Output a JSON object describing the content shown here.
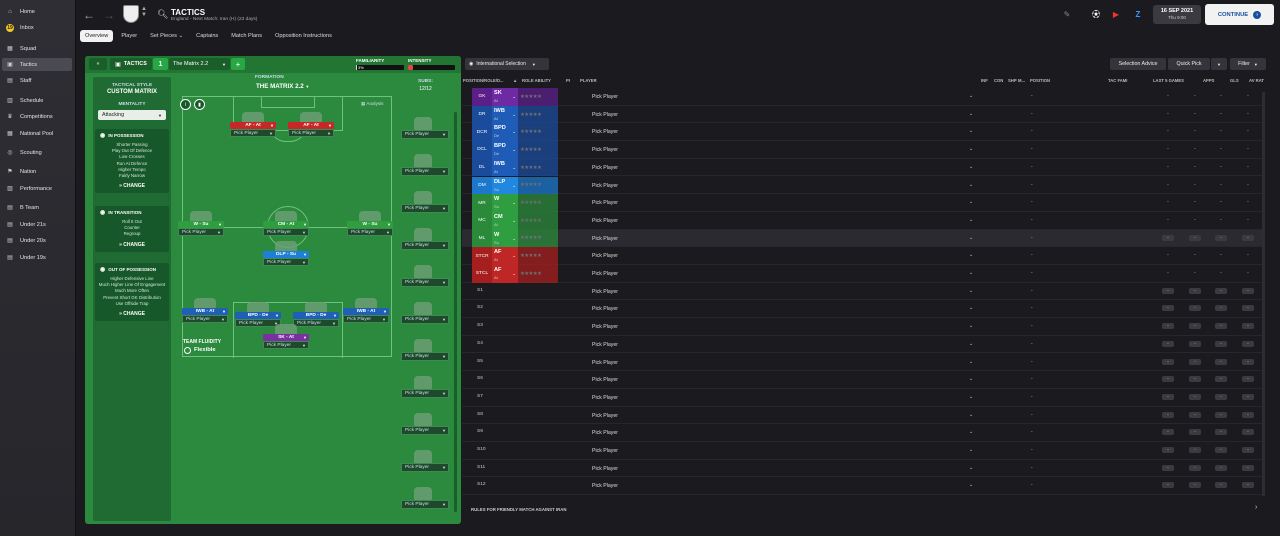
{
  "sidebar": {
    "items": [
      {
        "label": "Home",
        "icon": "home-icon",
        "glyph": "⌂"
      },
      {
        "label": "Inbox",
        "icon": "inbox-icon",
        "glyph": "19",
        "badge": true
      },
      {
        "label": "Squad",
        "icon": "squad-icon",
        "glyph": "▦"
      },
      {
        "label": "Tactics",
        "icon": "tactics-icon",
        "glyph": "▣",
        "active": true
      },
      {
        "label": "Staff",
        "icon": "staff-icon",
        "glyph": "▤"
      },
      {
        "label": "Schedule",
        "icon": "schedule-icon",
        "glyph": "▥"
      },
      {
        "label": "Competitions",
        "icon": "trophy-icon",
        "glyph": "♛"
      },
      {
        "label": "National Pool",
        "icon": "pool-icon",
        "glyph": "▦"
      },
      {
        "label": "Scouting",
        "icon": "scouting-icon",
        "glyph": "◎"
      },
      {
        "label": "Nation",
        "icon": "nation-icon",
        "glyph": "⚑"
      },
      {
        "label": "Performance",
        "icon": "performance-icon",
        "glyph": "▨"
      },
      {
        "label": "B Team",
        "icon": "team-icon",
        "glyph": "▤"
      },
      {
        "label": "Under 21s",
        "icon": "team-icon",
        "glyph": "▤"
      },
      {
        "label": "Under 20s",
        "icon": "team-icon",
        "glyph": "▤"
      },
      {
        "label": "Under 19s",
        "icon": "team-icon",
        "glyph": "▤"
      }
    ]
  },
  "header": {
    "title": "TACTICS",
    "subtitle": "England - Next Match: Iran (H) (23 days)",
    "date": "16 SEP 2021",
    "time": "Thu 9:00",
    "continue_label": "CONTINUE"
  },
  "tabs": [
    {
      "label": "Overview",
      "active": true
    },
    {
      "label": "Player"
    },
    {
      "label": "Set Pieces ⌄"
    },
    {
      "label": "Captains"
    },
    {
      "label": "Match Plans"
    },
    {
      "label": "Opposition Instructions"
    }
  ],
  "tactics": {
    "label": "TACTICS",
    "number": "1",
    "selected_tactic": "The Matrix 2.2",
    "familiarity_label": "FAMILIARITY",
    "familiarity_value": "3%",
    "familiarity_fraction": 0.03,
    "intensity_label": "INTENSITY",
    "intensity_fraction": 0.1,
    "intensity_color": "#e04848",
    "tactical_style_label": "TACTICAL STYLE",
    "tactical_style": "CUSTOM MATRIX",
    "mentality_label": "MENTALITY",
    "mentality": "Attacking",
    "in_possession_title": "IN POSSESSION",
    "in_possession": [
      "Shorter Passing",
      "Play Out Of Defence",
      "Low Crosses",
      "Run At Defence",
      "Higher Tempo",
      "Fairly Narrow"
    ],
    "in_transition_title": "IN TRANSITION",
    "in_transition": [
      "Roll It Out",
      "Counter",
      "Regroup"
    ],
    "out_of_possession_title": "OUT OF POSSESSION",
    "out_of_possession": [
      "Higher Defensive Line",
      "Much Higher Line Of Engagement",
      "Much More Often",
      "Prevent Short GK Distribution",
      "Use Offside Trap"
    ],
    "change_label": "CHANGE",
    "formation_label": "FORMATION",
    "formation_name": "THE MATRIX 2.2",
    "analysis_label": "Analysis",
    "fluidity_label": "TEAM FLUIDITY",
    "fluidity_value": "Flexible",
    "subs_label": "SUBS:",
    "subs_count": "12/12",
    "pick_player": "Pick Player"
  },
  "pitch_players": [
    {
      "role": "AF - At",
      "color": "#c62828"
    },
    {
      "role": "AF - At",
      "color": "#c62828"
    },
    {
      "role": "W - Su",
      "color": "#2e9e3f"
    },
    {
      "role": "CM - At",
      "color": "#2e9e3f"
    },
    {
      "role": "W - Su",
      "color": "#2e9e3f"
    },
    {
      "role": "DLP - Su",
      "color": "#1e7fd6"
    },
    {
      "role": "IWB - At",
      "color": "#1f5fb8"
    },
    {
      "role": "BPD - De",
      "color": "#1f5fb8"
    },
    {
      "role": "BPD - De",
      "color": "#1f5fb8"
    },
    {
      "role": "IWB - At",
      "color": "#1f5fb8"
    },
    {
      "role": "SK - At",
      "color": "#7b2fa0"
    }
  ],
  "right": {
    "selection_filter": "International Selection",
    "selection_advice": "Selection Advice",
    "quick_pick": "Quick Pick",
    "filter": "Filter",
    "columns": [
      "POSITION/ROLE/D...",
      "ROLE ABILITY",
      "PI",
      "PLAYER",
      "INF",
      "CON",
      "SHP",
      "M...",
      "POSITION",
      "TAC FAMI",
      "LAST 5 GAMES",
      "APPS",
      "GLS",
      "AV RAT"
    ],
    "stars": "★★★★★",
    "dash": "-",
    "rules": "RULES FOR FRIENDLY MATCH AGAINST IRAN",
    "rows": [
      {
        "pos": "GK",
        "role": "SK",
        "duty": "At",
        "color": "#5b1f8a",
        "rolecolor": "#6d2aa3"
      },
      {
        "pos": "DR",
        "role": "IWB",
        "duty": "At",
        "color": "#1b4c9c",
        "rolecolor": "#1f5cb8"
      },
      {
        "pos": "DCR",
        "role": "BPD",
        "duty": "De",
        "color": "#1b4c9c",
        "rolecolor": "#1f5cb8"
      },
      {
        "pos": "DCL",
        "role": "BPD",
        "duty": "De",
        "color": "#1b4c9c",
        "rolecolor": "#1f5cb8"
      },
      {
        "pos": "DL",
        "role": "IWB",
        "duty": "At",
        "color": "#1b4c9c",
        "rolecolor": "#1f5cb8"
      },
      {
        "pos": "DM",
        "role": "DLP",
        "duty": "Su",
        "color": "#1c78cc",
        "rolecolor": "#2188e0"
      },
      {
        "pos": "MR",
        "role": "W",
        "duty": "Su",
        "color": "#2a8a3a",
        "rolecolor": "#2f9e41"
      },
      {
        "pos": "MC",
        "role": "CM",
        "duty": "At",
        "color": "#2a8a3a",
        "rolecolor": "#2f9e41"
      },
      {
        "pos": "ML",
        "role": "W",
        "duty": "Su",
        "color": "#2a8a3a",
        "rolecolor": "#2f9e41"
      },
      {
        "pos": "STCR",
        "role": "AF",
        "duty": "At",
        "color": "#a61e1e",
        "rolecolor": "#bf2626"
      },
      {
        "pos": "STCL",
        "role": "AF",
        "duty": "At",
        "color": "#a61e1e",
        "rolecolor": "#bf2626"
      }
    ],
    "sub_rows": [
      "S1",
      "S2",
      "S3",
      "S4",
      "S5",
      "S6",
      "S7",
      "S8",
      "S9",
      "S10",
      "S11",
      "S12"
    ]
  }
}
